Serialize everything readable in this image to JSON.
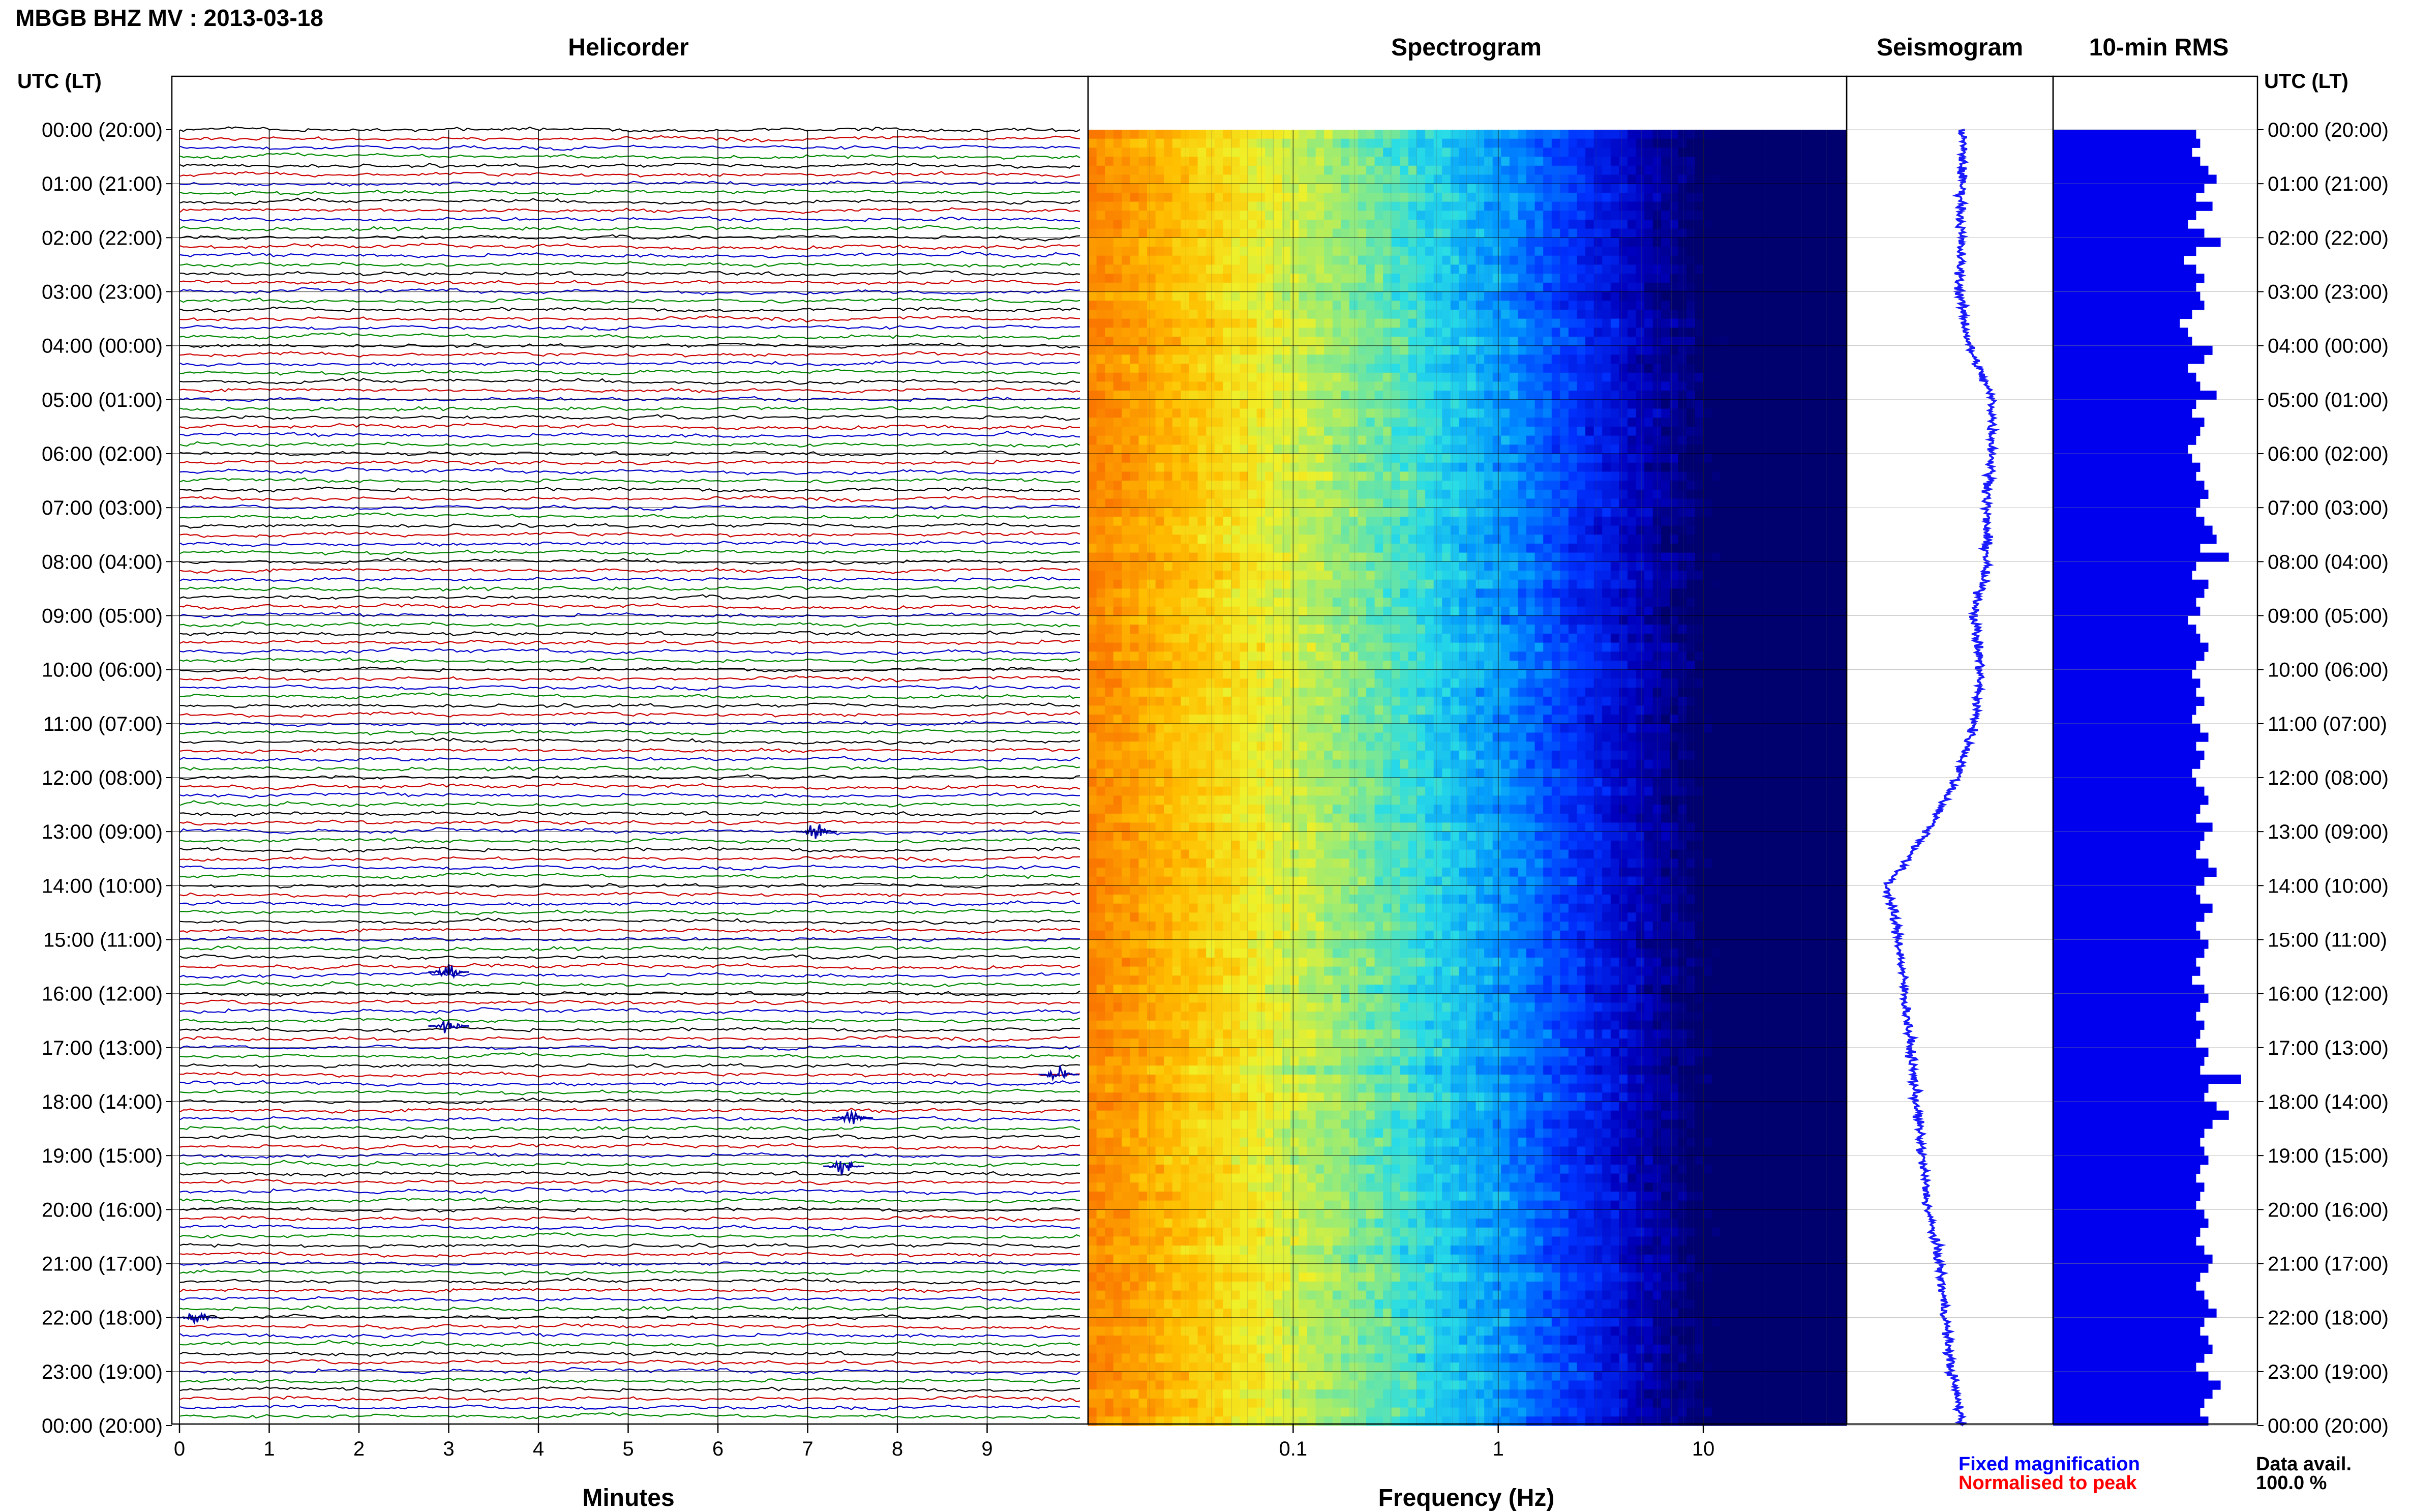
{
  "header": {
    "title": "MBGB BHZ MV : 2013-03-18"
  },
  "panels": {
    "helicorder": "Helicorder",
    "spectrogram": "Spectrogram",
    "seismogram": "Seismogram",
    "rms": "10-min RMS"
  },
  "axes": {
    "utc_left": "UTC (LT)",
    "utc_right": "UTC (LT)",
    "minutes_label": "Minutes",
    "frequency_label": "Frequency (Hz)"
  },
  "legend": {
    "fixed": "Fixed magnification",
    "normalised": "Normalised to peak",
    "fixed_color": "#0000ff",
    "normalised_color": "#ff0000"
  },
  "availability": {
    "label": "Data avail.",
    "value": "100.0 %"
  },
  "chart_data": {
    "type": "line",
    "title": "MBGB BHZ MV : 2013-03-18",
    "time_labels": [
      "00:00 (20:00)",
      "01:00 (21:00)",
      "02:00 (22:00)",
      "03:00 (23:00)",
      "04:00 (00:00)",
      "05:00 (01:00)",
      "06:00 (02:00)",
      "07:00 (03:00)",
      "08:00 (04:00)",
      "09:00 (05:00)",
      "10:00 (06:00)",
      "11:00 (07:00)",
      "12:00 (08:00)",
      "13:00 (09:00)",
      "14:00 (10:00)",
      "15:00 (11:00)",
      "16:00 (12:00)",
      "17:00 (13:00)",
      "18:00 (14:00)",
      "19:00 (15:00)",
      "20:00 (16:00)",
      "21:00 (17:00)",
      "22:00 (18:00)",
      "23:00 (19:00)",
      "00:00 (20:00)"
    ],
    "helicorder": {
      "xlabel": "Minutes",
      "minutes_ticks": [
        0,
        1,
        2,
        3,
        4,
        5,
        6,
        7,
        8,
        9
      ],
      "xlim": [
        0,
        10
      ],
      "traces": 144,
      "trace_colors": [
        "#000000",
        "#cc0000",
        "#0000cc",
        "#008800"
      ],
      "events": [
        {
          "utc_hour": 13.0,
          "minute": 7.1
        },
        {
          "utc_hour": 15.6,
          "minute": 3.0
        },
        {
          "utc_hour": 16.6,
          "minute": 3.0
        },
        {
          "utc_hour": 17.5,
          "minute": 9.8
        },
        {
          "utc_hour": 18.3,
          "minute": 7.5
        },
        {
          "utc_hour": 19.2,
          "minute": 7.4
        },
        {
          "utc_hour": 22.0,
          "minute": 0.2
        }
      ]
    },
    "spectrogram": {
      "xlabel": "Frequency (Hz)",
      "xscale": "log",
      "xlim": [
        0.01,
        50
      ],
      "freq_ticks": [
        0.1,
        1,
        10
      ],
      "freq_tick_labels": [
        "0.1",
        "1",
        "10"
      ]
    },
    "seismogram": {
      "offset_by_hour": [
        0.1,
        0.09,
        0.08,
        0.07,
        0.15,
        0.35,
        0.35,
        0.3,
        0.3,
        0.2,
        0.25,
        0.2,
        0.05,
        -0.2,
        -0.55,
        -0.45,
        -0.4,
        -0.35,
        -0.3,
        -0.25,
        -0.2,
        -0.1,
        -0.05,
        0.0,
        0.1
      ]
    },
    "rms_10min": {
      "values": [
        0.7,
        0.72,
        0.68,
        0.72,
        0.76,
        0.8,
        0.74,
        0.7,
        0.78,
        0.7,
        0.66,
        0.74,
        0.82,
        0.7,
        0.64,
        0.7,
        0.74,
        0.7,
        0.72,
        0.74,
        0.68,
        0.62,
        0.66,
        0.68,
        0.78,
        0.74,
        0.66,
        0.7,
        0.72,
        0.8,
        0.7,
        0.68,
        0.74,
        0.72,
        0.7,
        0.66,
        0.68,
        0.72,
        0.7,
        0.74,
        0.76,
        0.72,
        0.7,
        0.74,
        0.78,
        0.8,
        0.72,
        0.86,
        0.7,
        0.68,
        0.76,
        0.74,
        0.7,
        0.72,
        0.66,
        0.7,
        0.72,
        0.76,
        0.74,
        0.7,
        0.68,
        0.72,
        0.7,
        0.74,
        0.7,
        0.68,
        0.72,
        0.76,
        0.7,
        0.74,
        0.72,
        0.68,
        0.7,
        0.74,
        0.76,
        0.72,
        0.7,
        0.78,
        0.74,
        0.72,
        0.7,
        0.76,
        0.8,
        0.74,
        0.7,
        0.72,
        0.78,
        0.74,
        0.7,
        0.72,
        0.76,
        0.74,
        0.7,
        0.72,
        0.68,
        0.74,
        0.76,
        0.72,
        0.7,
        0.74,
        0.72,
        0.7,
        0.76,
        0.74,
        0.72,
        0.92,
        0.76,
        0.74,
        0.8,
        0.86,
        0.78,
        0.74,
        0.72,
        0.74,
        0.76,
        0.72,
        0.7,
        0.74,
        0.72,
        0.7,
        0.74,
        0.76,
        0.72,
        0.7,
        0.74,
        0.78,
        0.76,
        0.72,
        0.7,
        0.74,
        0.76,
        0.8,
        0.74,
        0.72,
        0.76,
        0.78,
        0.74,
        0.7,
        0.76,
        0.82,
        0.78,
        0.74,
        0.72,
        0.76
      ]
    }
  }
}
